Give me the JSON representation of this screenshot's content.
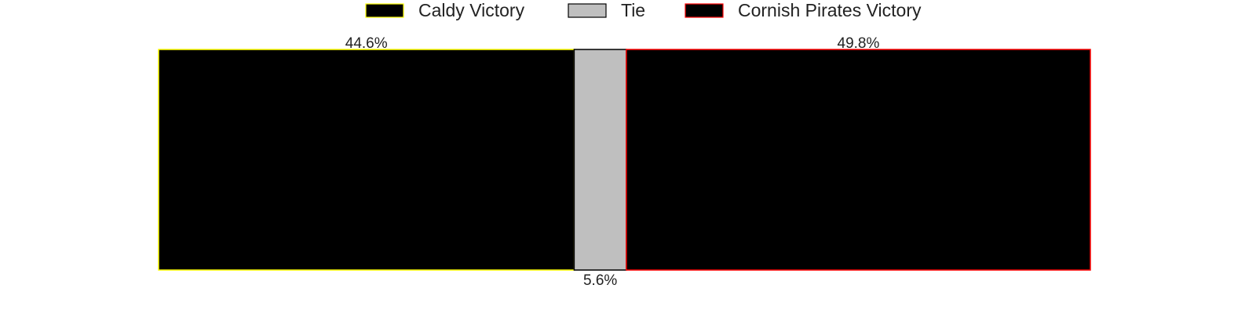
{
  "chart_data": {
    "type": "bar",
    "orientation": "horizontal-stacked",
    "series": [
      {
        "name": "Caldy Victory",
        "value": 44.6,
        "label": "44.6%",
        "fill": "#000000",
        "edge": "#ffff00",
        "label_position": "top"
      },
      {
        "name": "Tie",
        "value": 5.6,
        "label": "5.6%",
        "fill": "#bfbfbf",
        "edge": "#000000",
        "label_position": "bottom"
      },
      {
        "name": "Cornish Pirates Victory",
        "value": 49.8,
        "label": "49.8%",
        "fill": "#000000",
        "edge": "#ff0000",
        "label_position": "top"
      }
    ],
    "xlim": [
      0,
      100
    ],
    "title": "",
    "xlabel": "",
    "ylabel": "",
    "grid": false,
    "legend_placement": "top-center"
  }
}
